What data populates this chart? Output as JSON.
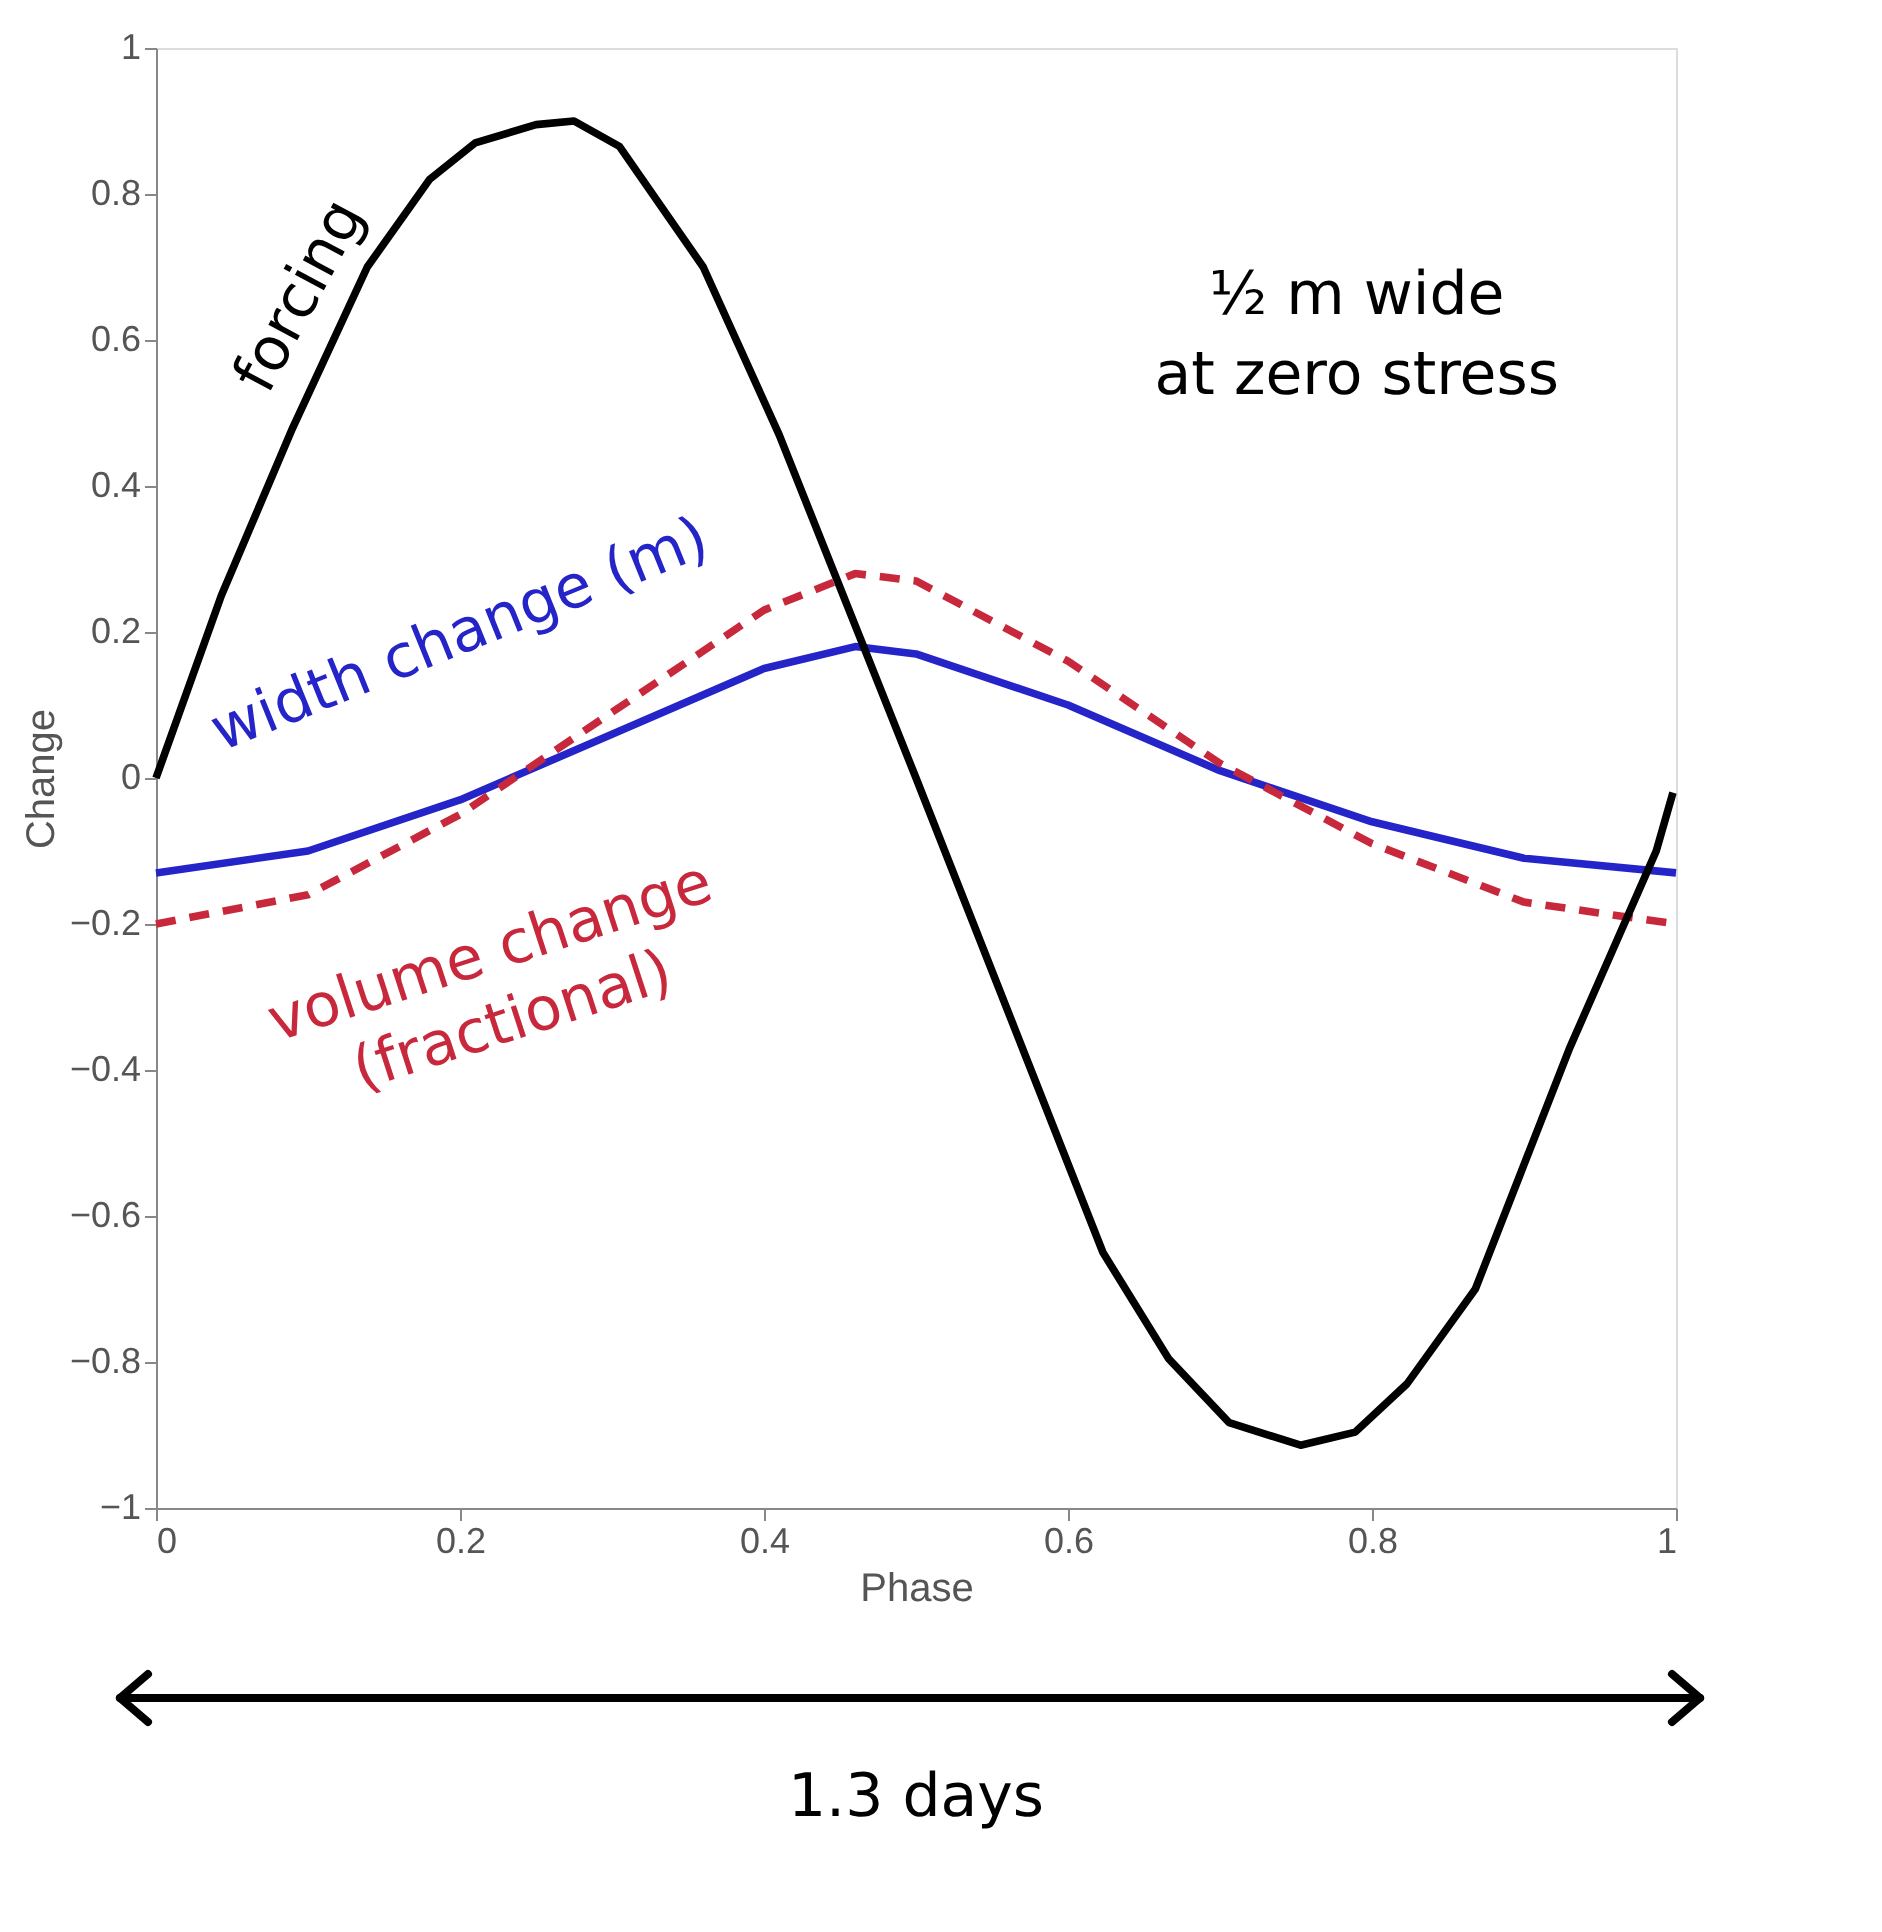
{
  "chart_data": {
    "type": "line",
    "xlabel": "Phase",
    "ylabel": "Change",
    "xlim": [
      0,
      1
    ],
    "ylim": [
      -1,
      1
    ],
    "xticks": [
      0,
      0.2,
      0.4,
      0.6,
      0.8,
      1
    ],
    "yticks": [
      -1,
      -0.8,
      -0.6,
      -0.4,
      -0.2,
      0,
      0.2,
      0.4,
      0.6,
      0.8,
      1
    ],
    "grid": false,
    "legend": false,
    "marker": "none",
    "series": [
      {
        "name": "width change (m)",
        "color": "#2424c8",
        "line_style": "solid",
        "x": [
          0,
          0.1,
          0.2,
          0.3,
          0.4,
          0.46,
          0.5,
          0.6,
          0.7,
          0.8,
          0.9,
          1
        ],
        "values": [
          -0.13,
          -0.1,
          -0.03,
          0.06,
          0.15,
          0.18,
          0.17,
          0.1,
          0.01,
          -0.06,
          -0.11,
          -0.13
        ]
      },
      {
        "name": "volume change\n(fractional)",
        "color": "#c8283c",
        "line_style": "dashed",
        "x": [
          0,
          0.1,
          0.2,
          0.3,
          0.4,
          0.46,
          0.5,
          0.6,
          0.7,
          0.8,
          0.9,
          1
        ],
        "values": [
          -0.2,
          -0.16,
          -0.05,
          0.09,
          0.23,
          0.28,
          0.27,
          0.16,
          0.02,
          -0.09,
          -0.17,
          -0.2
        ]
      },
      {
        "name": "forcing",
        "color": "#000000",
        "line_style": "solid",
        "x": [
          0,
          0.043,
          0.09,
          0.139,
          0.18,
          0.21,
          0.25,
          0.275,
          0.305,
          0.36,
          0.41,
          0.5,
          0.623,
          0.666,
          0.706,
          0.753,
          0.789,
          0.823,
          0.868,
          0.93,
          0.987,
          0.998
        ],
        "values": [
          0,
          0.25,
          0.48,
          0.7,
          0.82,
          0.87,
          0.895,
          0.9,
          0.865,
          0.7,
          0.47,
          0,
          -0.65,
          -0.795,
          -0.883,
          -0.914,
          -0.896,
          -0.83,
          -0.7,
          -0.37,
          -0.1,
          -0.02
        ]
      }
    ],
    "annotations": [
      "½ m wide\nat zero stress",
      "1.3 days"
    ]
  }
}
